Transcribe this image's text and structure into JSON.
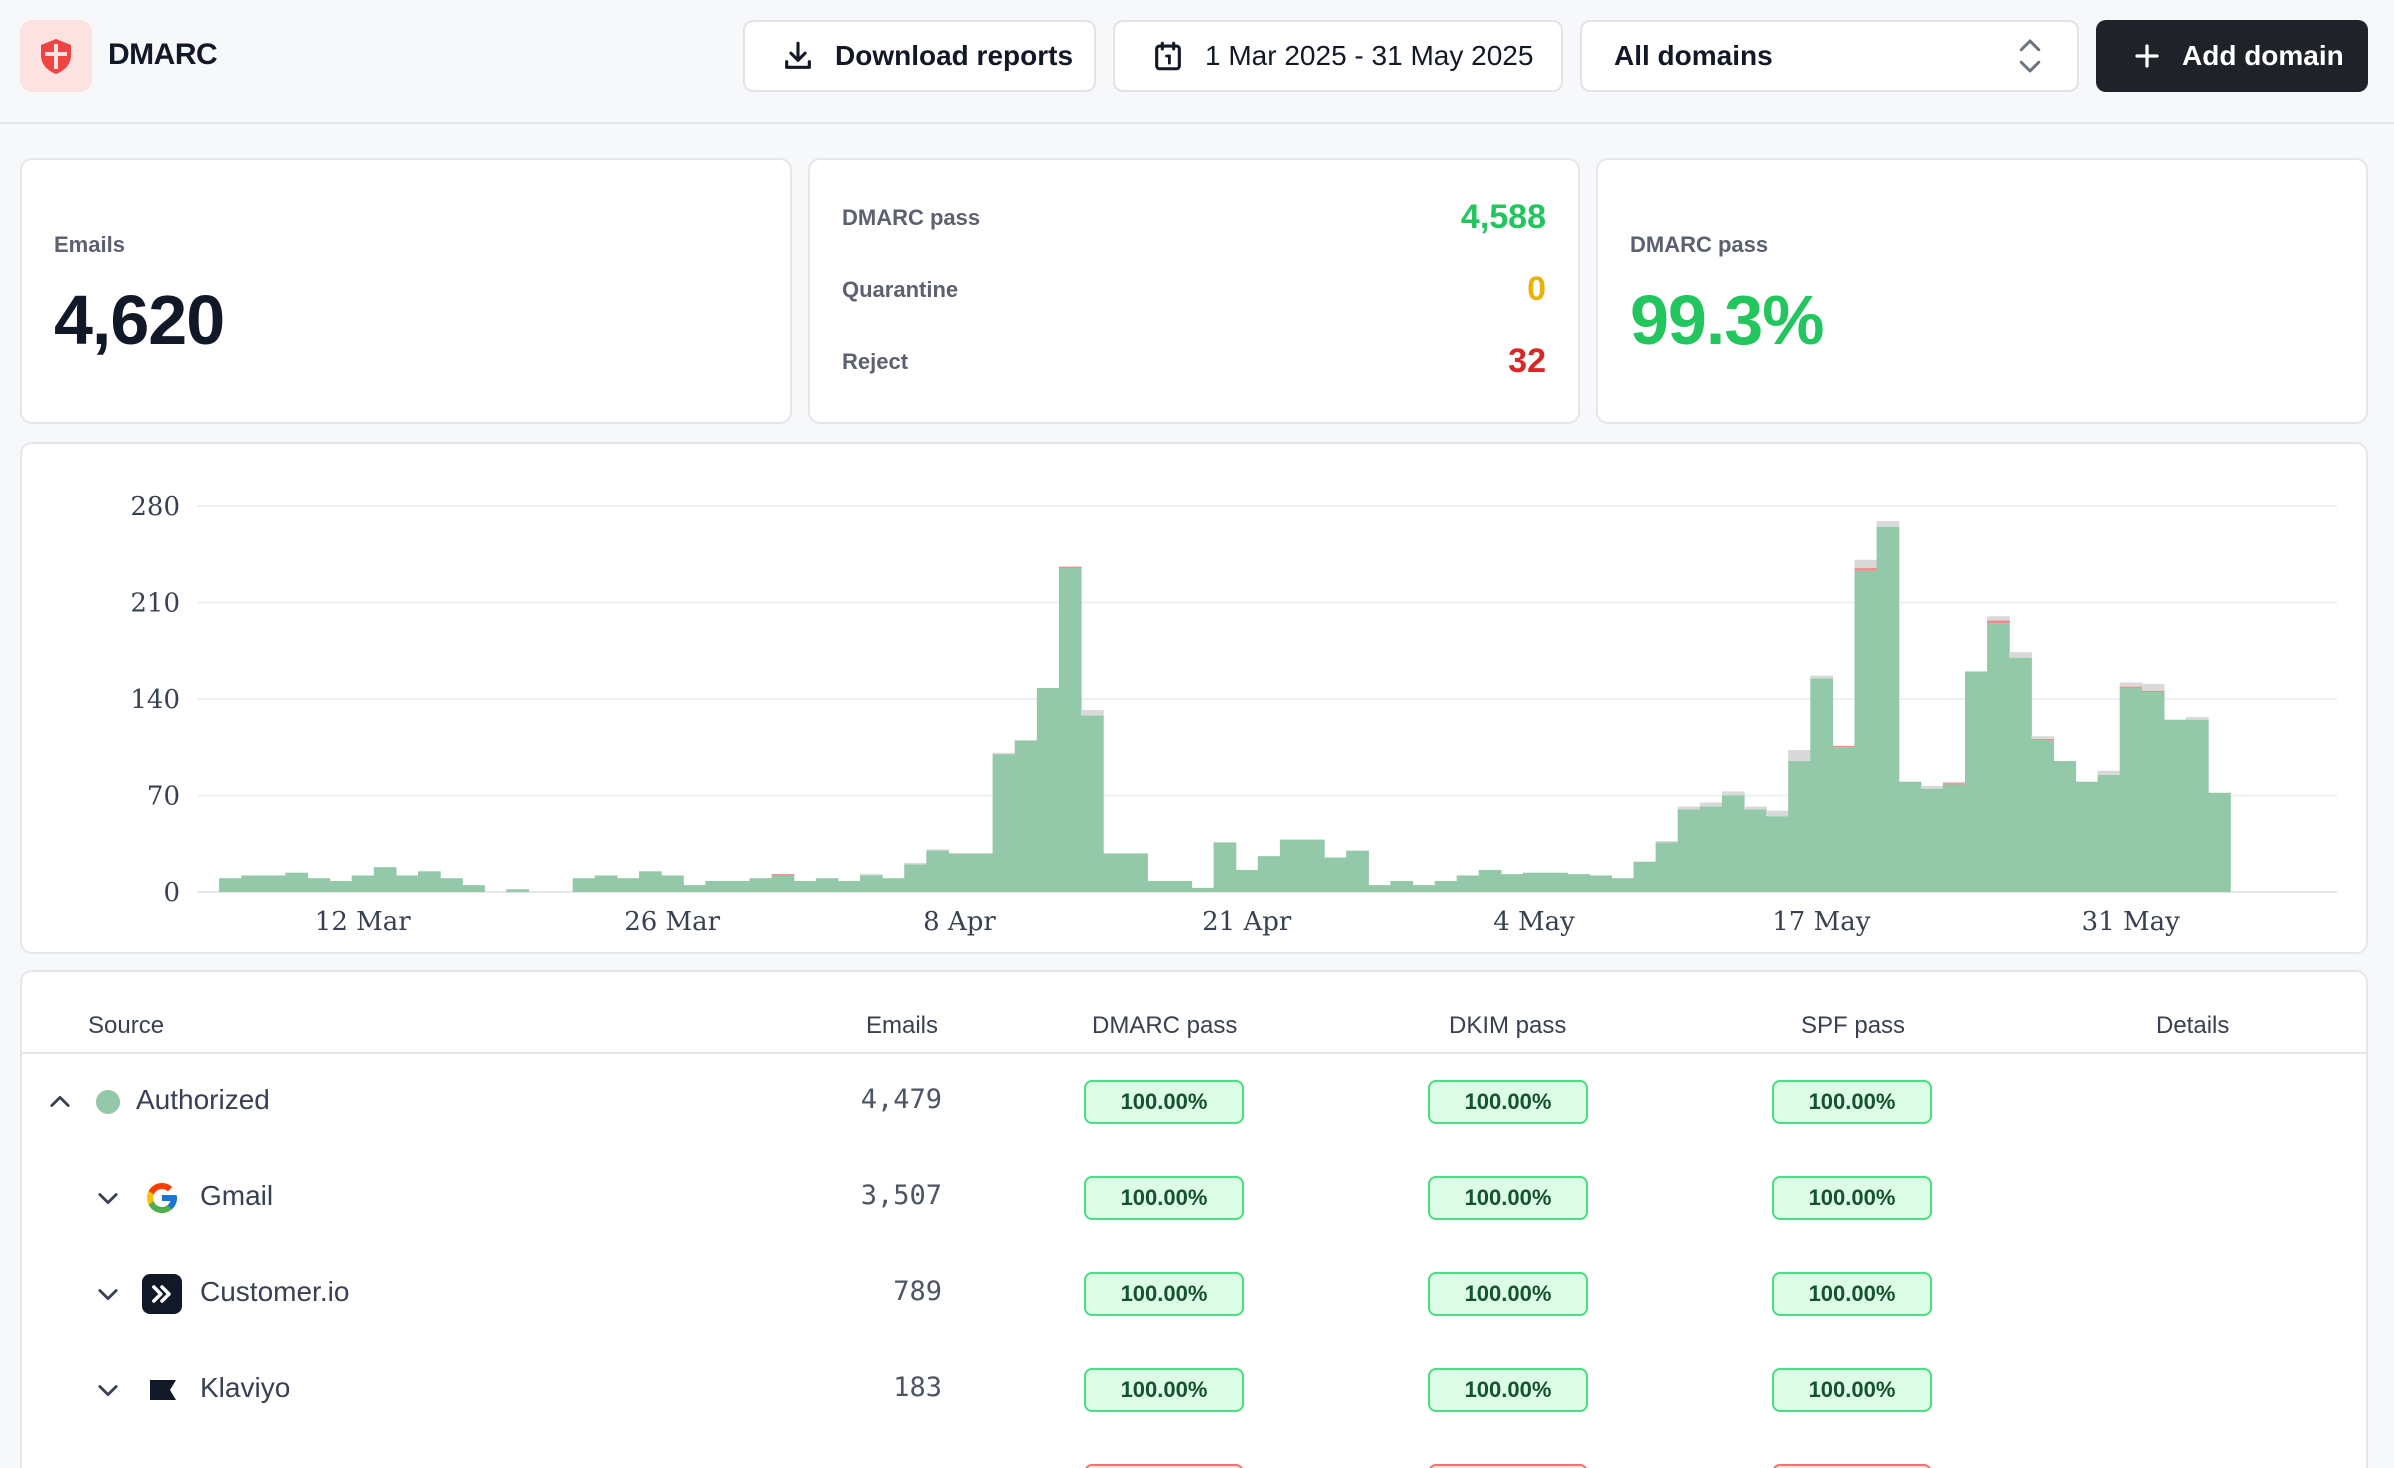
{
  "app": {
    "title": "DMARC"
  },
  "toolbar": {
    "download_label": "Download reports",
    "date_range": "1 Mar 2025 - 31 May 2025",
    "domain_select": "All domains",
    "add_label": "Add domain"
  },
  "summary": {
    "emails_label": "Emails",
    "emails_value": "4,620",
    "pass_label": "DMARC pass",
    "pass_value": "4,588",
    "quarantine_label": "Quarantine",
    "quarantine_value": "0",
    "reject_label": "Reject",
    "reject_value": "32",
    "rate_label": "DMARC pass",
    "rate_value": "99.3%"
  },
  "colors": {
    "pass": "#22c55e",
    "quarantine": "#eab308",
    "reject": "#ef4444",
    "bar_pass": "#93c9a8",
    "bar_fail": "#d9d9d9",
    "bar_reject": "#f08a8a"
  },
  "chart_data": {
    "type": "bar",
    "stacked": true,
    "ylim": [
      0,
      280
    ],
    "yticks": [
      "0",
      "70",
      "140",
      "210",
      "280"
    ],
    "xticks": [
      {
        "label": "12 Mar",
        "day": 12
      },
      {
        "label": "26 Mar",
        "day": 26
      },
      {
        "label": "8 Apr",
        "day": 39
      },
      {
        "label": "21 Apr",
        "day": 52
      },
      {
        "label": "4 May",
        "day": 65
      },
      {
        "label": "17 May",
        "day": 78
      },
      {
        "label": "31 May",
        "day": 92
      }
    ],
    "grid": true,
    "legend": "none",
    "series": [
      {
        "name": "pass",
        "values": [
          0,
          0,
          0,
          0,
          0,
          0,
          10,
          12,
          12,
          14,
          10,
          8,
          12,
          18,
          12,
          15,
          10,
          5,
          0,
          2,
          0,
          0,
          10,
          12,
          10,
          15,
          12,
          5,
          8,
          8,
          10,
          12,
          8,
          10,
          8,
          12,
          10,
          20,
          30,
          28,
          28,
          100,
          110,
          148,
          235,
          128,
          28,
          28,
          8,
          8,
          3,
          36,
          16,
          26,
          38,
          38,
          25,
          30,
          5,
          8,
          5,
          8,
          12,
          16,
          13,
          14,
          14,
          13,
          12,
          10,
          22,
          36,
          60,
          62,
          70,
          60,
          55,
          95,
          155,
          105,
          233,
          265,
          80,
          75,
          78,
          160,
          195,
          170,
          110,
          95,
          80,
          85,
          148,
          145,
          125,
          125,
          72
        ]
      },
      {
        "name": "fail",
        "values": [
          0,
          0,
          0,
          0,
          0,
          0,
          0,
          0,
          0,
          0,
          0,
          0,
          0,
          0,
          0,
          0,
          0,
          0,
          0,
          0,
          0,
          0,
          0,
          0,
          0,
          0,
          0,
          0,
          0,
          0,
          0,
          0,
          0,
          0,
          0,
          1,
          0,
          1,
          1,
          0,
          0,
          1,
          0,
          0,
          0,
          4,
          0,
          0,
          0,
          0,
          0,
          0,
          0,
          0,
          0,
          0,
          0,
          0,
          0,
          0,
          0,
          0,
          0,
          0,
          0,
          0,
          0,
          0,
          0,
          0,
          0,
          1,
          2,
          3,
          3,
          2,
          4,
          8,
          2,
          0,
          6,
          4,
          0,
          2,
          1,
          0,
          3,
          4,
          2,
          0,
          0,
          3,
          3,
          5,
          0,
          2,
          0
        ]
      },
      {
        "name": "reject",
        "values": [
          0,
          0,
          0,
          0,
          0,
          0,
          0,
          0,
          0,
          0,
          0,
          0,
          0,
          0,
          0,
          0,
          0,
          0,
          0,
          0,
          0,
          0,
          0,
          0,
          0,
          0,
          0,
          0,
          0,
          0,
          0,
          1,
          0,
          0,
          0,
          0,
          0,
          0,
          0,
          0,
          0,
          0,
          0,
          0,
          1,
          0,
          0,
          0,
          0,
          0,
          0,
          0,
          0,
          0,
          0,
          0,
          0,
          0,
          0,
          0,
          0,
          0,
          0,
          0,
          0,
          0,
          0,
          0,
          0,
          0,
          0,
          0,
          0,
          0,
          0,
          0,
          0,
          0,
          0,
          1,
          2,
          0,
          0,
          0,
          1,
          0,
          2,
          0,
          1,
          0,
          0,
          0,
          1,
          1,
          0,
          0,
          0
        ]
      }
    ]
  },
  "table": {
    "columns": [
      "Source",
      "Emails",
      "DMARC pass",
      "DKIM pass",
      "SPF pass",
      "Details"
    ],
    "rows": [
      {
        "name": "Authorized",
        "emails": "4,479",
        "dmarc": "100.00%",
        "dkim": "100.00%",
        "spf": "100.00%"
      },
      {
        "name": "Gmail",
        "emails": "3,507",
        "dmarc": "100.00%",
        "dkim": "100.00%",
        "spf": "100.00%"
      },
      {
        "name": "Customer.io",
        "emails": "789",
        "dmarc": "100.00%",
        "dkim": "100.00%",
        "spf": "100.00%"
      },
      {
        "name": "Klaviyo",
        "emails": "183",
        "dmarc": "100.00%",
        "dkim": "100.00%",
        "spf": "100.00%"
      }
    ]
  }
}
